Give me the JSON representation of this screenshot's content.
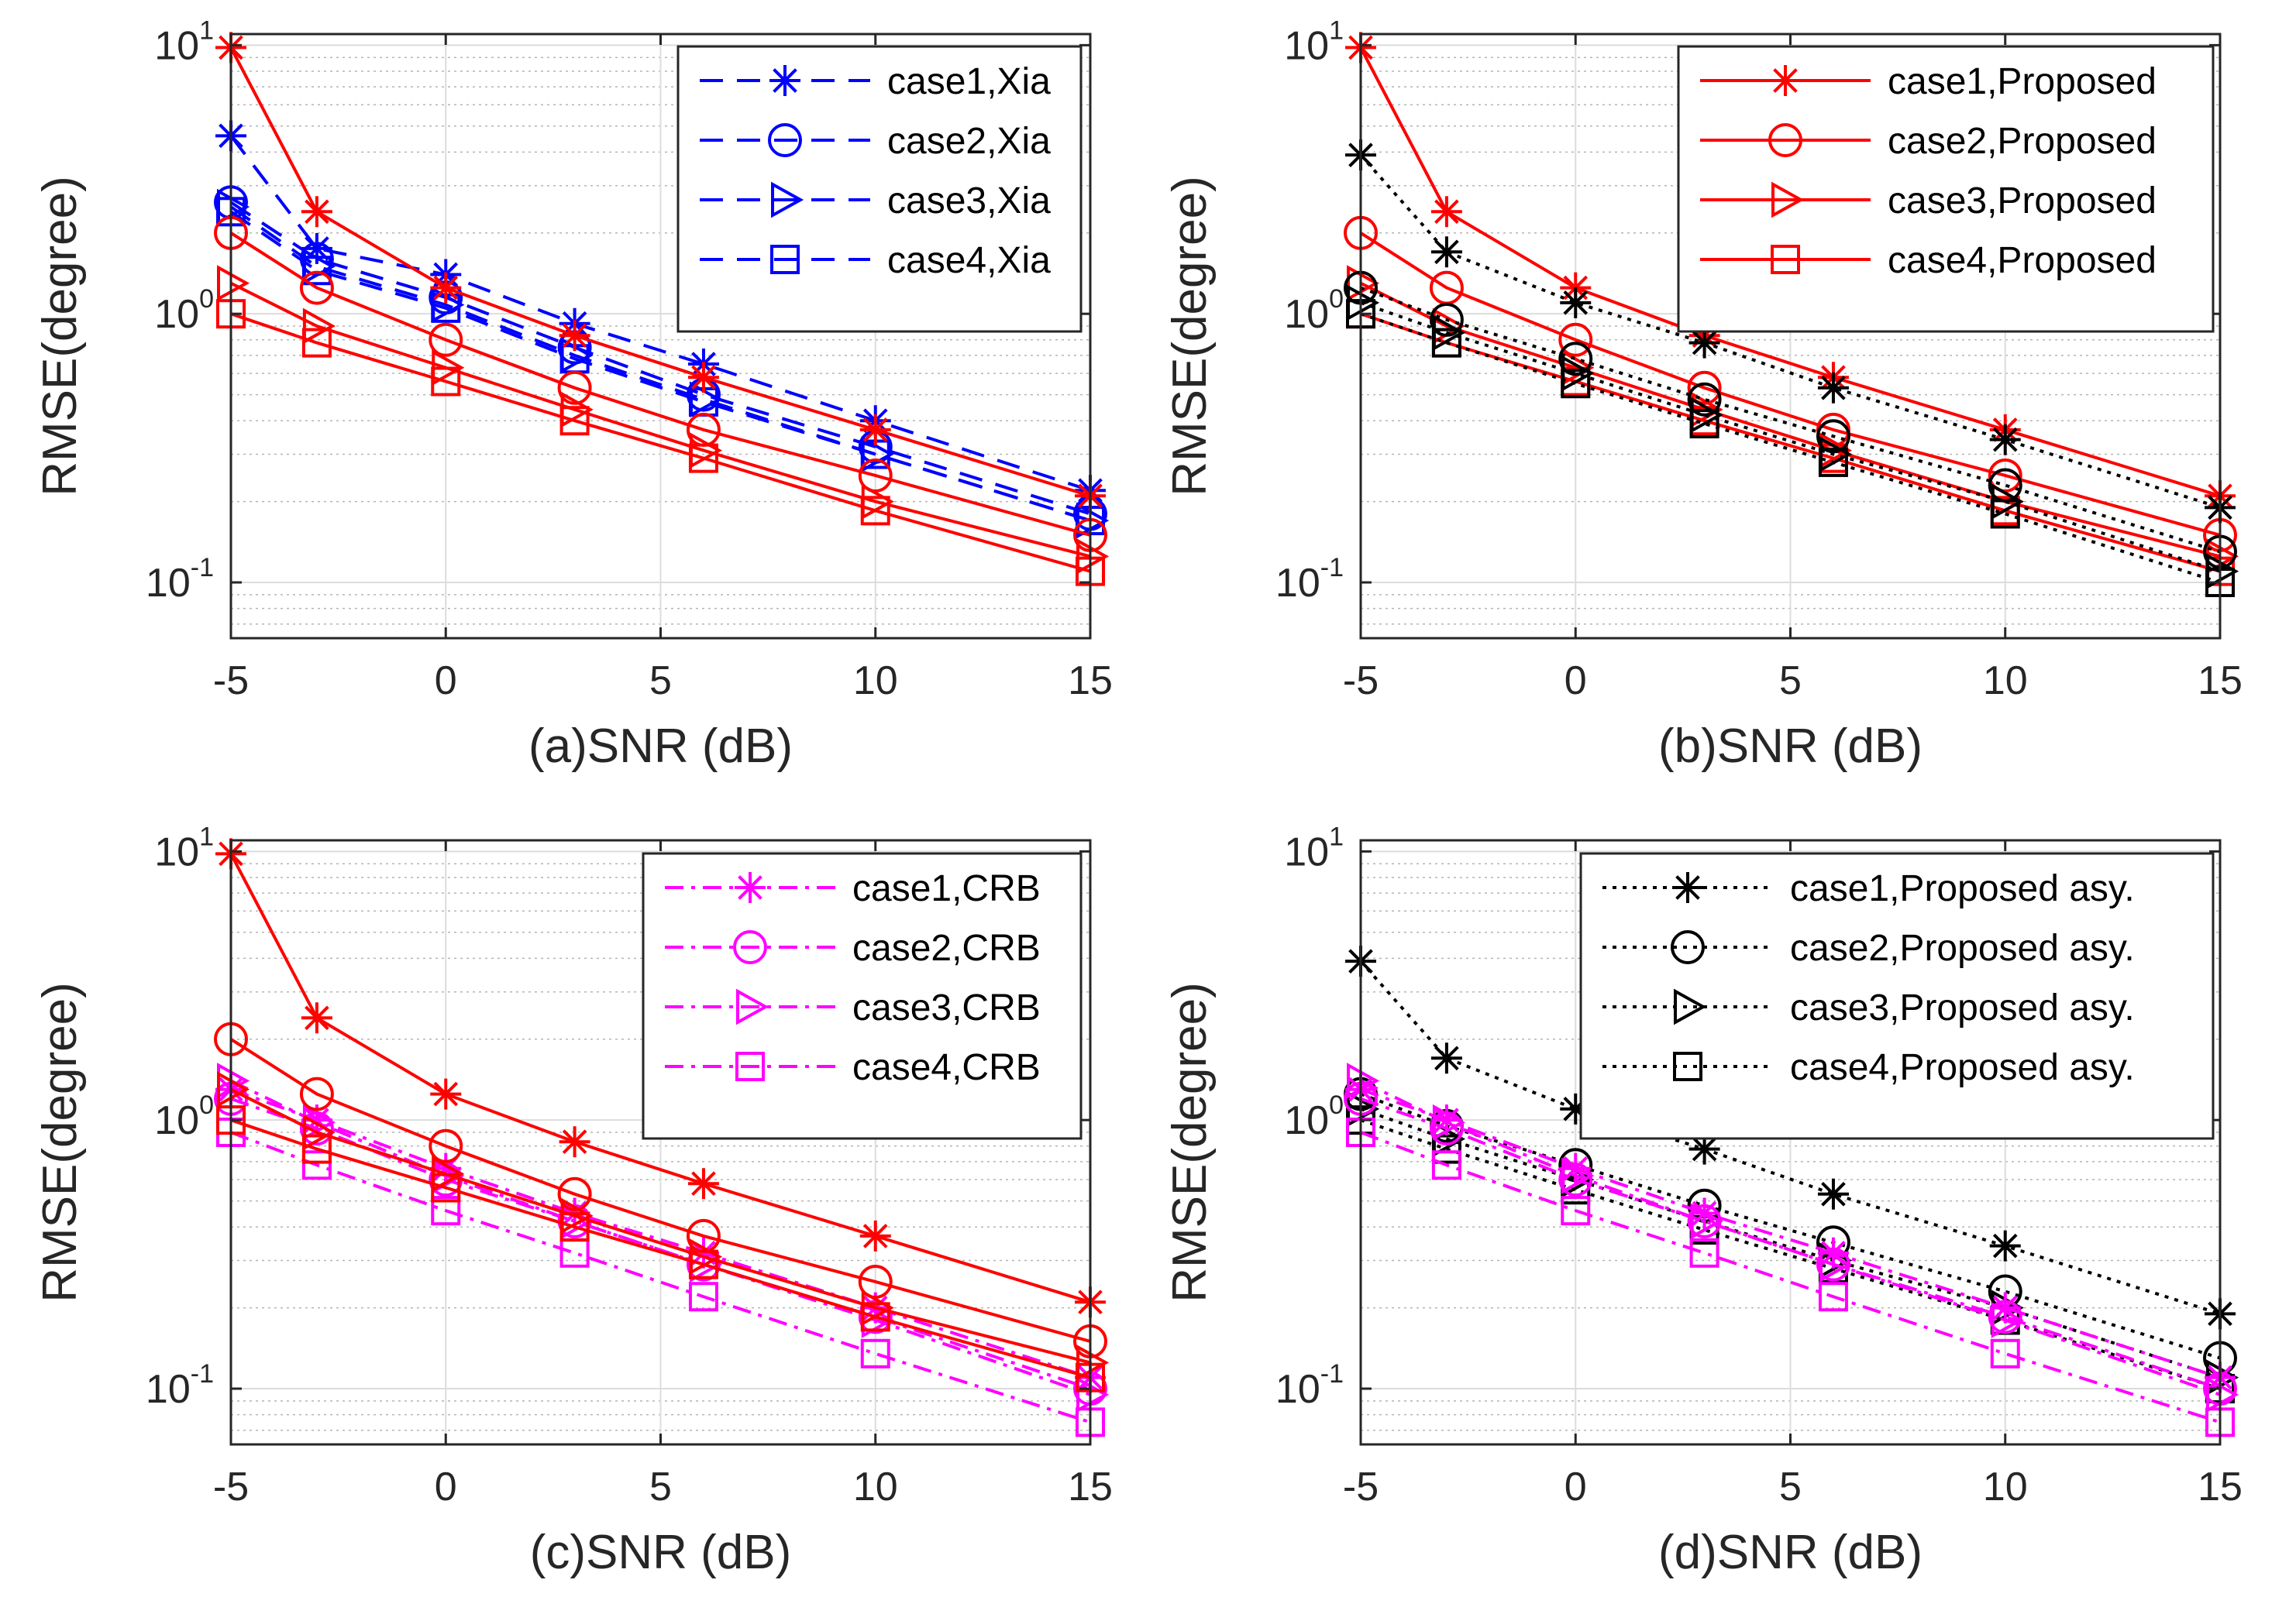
{
  "figure": {
    "ylabel": "RMSE(degree)",
    "ytick_labels": [
      {
        "base": "10",
        "exp": "-1",
        "value": 0.1
      },
      {
        "base": "10",
        "exp": "0",
        "value": 1
      },
      {
        "base": "10",
        "exp": "1",
        "value": 10
      }
    ]
  },
  "chart_data": [
    {
      "type": "line",
      "id": "a",
      "xlabel": "(a)SNR (dB)",
      "ylabel": "RMSE(degree)",
      "yscale": "log",
      "xlim": [
        -5,
        15
      ],
      "ylim": [
        0.062,
        11
      ],
      "x": [
        -5,
        -3,
        0,
        3,
        6,
        10,
        15
      ],
      "xticks": [
        -5,
        0,
        5,
        10,
        15
      ],
      "grid": true,
      "legend_position": "top-right",
      "series": [
        {
          "name": "case1,Xia",
          "color": "#0000ff",
          "dash": "dashed",
          "marker": "star",
          "legend": true,
          "values": [
            4.6,
            1.75,
            1.4,
            0.92,
            0.65,
            0.4,
            0.22
          ]
        },
        {
          "name": "case2,Xia",
          "color": "#0000ff",
          "dash": "dashed",
          "marker": "circle",
          "legend": true,
          "values": [
            2.6,
            1.6,
            1.15,
            0.75,
            0.5,
            0.32,
            0.18
          ]
        },
        {
          "name": "case3,Xia",
          "color": "#0000ff",
          "dash": "dashed",
          "marker": "triangle",
          "legend": true,
          "values": [
            2.5,
            1.5,
            1.08,
            0.7,
            0.48,
            0.3,
            0.17
          ]
        },
        {
          "name": "case4,Xia",
          "color": "#0000ff",
          "dash": "dashed",
          "marker": "square",
          "legend": true,
          "values": [
            2.4,
            1.45,
            1.05,
            0.68,
            0.47,
            0.3,
            0.17
          ]
        },
        {
          "name": "case1,Proposed",
          "color": "#ff0000",
          "dash": "solid",
          "marker": "star",
          "legend": false,
          "values": [
            9.8,
            2.4,
            1.25,
            0.83,
            0.58,
            0.37,
            0.21
          ]
        },
        {
          "name": "case2,Proposed",
          "color": "#ff0000",
          "dash": "solid",
          "marker": "circle",
          "legend": false,
          "values": [
            2.0,
            1.25,
            0.8,
            0.53,
            0.37,
            0.25,
            0.15
          ]
        },
        {
          "name": "case3,Proposed",
          "color": "#ff0000",
          "dash": "solid",
          "marker": "triangle",
          "legend": false,
          "values": [
            1.3,
            0.9,
            0.63,
            0.44,
            0.31,
            0.2,
            0.125
          ]
        },
        {
          "name": "case4,Proposed",
          "color": "#ff0000",
          "dash": "solid",
          "marker": "square",
          "legend": false,
          "values": [
            1.0,
            0.78,
            0.56,
            0.4,
            0.29,
            0.185,
            0.11
          ]
        }
      ]
    },
    {
      "type": "line",
      "id": "b",
      "xlabel": "(b)SNR (dB)",
      "ylabel": "RMSE(degree)",
      "yscale": "log",
      "xlim": [
        -5,
        15
      ],
      "ylim": [
        0.062,
        11
      ],
      "x": [
        -5,
        -3,
        0,
        3,
        6,
        10,
        15
      ],
      "xticks": [
        -5,
        0,
        5,
        10,
        15
      ],
      "grid": true,
      "legend_position": "top-right",
      "series": [
        {
          "name": "case1,Proposed",
          "color": "#ff0000",
          "dash": "solid",
          "marker": "star",
          "legend": true,
          "values": [
            9.8,
            2.4,
            1.25,
            0.83,
            0.58,
            0.37,
            0.21
          ]
        },
        {
          "name": "case2,Proposed",
          "color": "#ff0000",
          "dash": "solid",
          "marker": "circle",
          "legend": true,
          "values": [
            2.0,
            1.25,
            0.8,
            0.53,
            0.37,
            0.25,
            0.15
          ]
        },
        {
          "name": "case3,Proposed",
          "color": "#ff0000",
          "dash": "solid",
          "marker": "triangle",
          "legend": true,
          "values": [
            1.3,
            0.9,
            0.63,
            0.44,
            0.31,
            0.2,
            0.125
          ]
        },
        {
          "name": "case4,Proposed",
          "color": "#ff0000",
          "dash": "solid",
          "marker": "square",
          "legend": true,
          "values": [
            1.0,
            0.78,
            0.56,
            0.4,
            0.29,
            0.185,
            0.11
          ]
        },
        {
          "name": "case1,Proposed asy.",
          "color": "#000000",
          "dash": "dotted",
          "marker": "star",
          "legend": false,
          "values": [
            3.9,
            1.7,
            1.1,
            0.78,
            0.53,
            0.34,
            0.19
          ]
        },
        {
          "name": "case2,Proposed asy.",
          "color": "#000000",
          "dash": "dotted",
          "marker": "circle",
          "legend": false,
          "values": [
            1.25,
            0.95,
            0.68,
            0.48,
            0.35,
            0.23,
            0.13
          ]
        },
        {
          "name": "case3,Proposed asy.",
          "color": "#000000",
          "dash": "dotted",
          "marker": "triangle",
          "legend": false,
          "values": [
            1.1,
            0.85,
            0.6,
            0.42,
            0.3,
            0.2,
            0.11
          ]
        },
        {
          "name": "case4,Proposed asy.",
          "color": "#000000",
          "dash": "dotted",
          "marker": "square",
          "legend": false,
          "values": [
            1.0,
            0.78,
            0.55,
            0.39,
            0.28,
            0.18,
            0.1
          ]
        }
      ]
    },
    {
      "type": "line",
      "id": "c",
      "xlabel": "(c)SNR (dB)",
      "ylabel": "RMSE(degree)",
      "yscale": "log",
      "xlim": [
        -5,
        15
      ],
      "ylim": [
        0.062,
        11
      ],
      "x": [
        -5,
        -3,
        0,
        3,
        6,
        10,
        15
      ],
      "xticks": [
        -5,
        0,
        5,
        10,
        15
      ],
      "grid": true,
      "legend_position": "top-right",
      "series": [
        {
          "name": "case1,CRB",
          "color": "#ff00ff",
          "dash": "dashdot",
          "marker": "star",
          "legend": true,
          "values": [
            1.3,
            1.0,
            0.66,
            0.45,
            0.32,
            0.2,
            0.11
          ]
        },
        {
          "name": "case2,CRB",
          "color": "#ff00ff",
          "dash": "dashdot",
          "marker": "circle",
          "legend": true,
          "values": [
            1.2,
            0.93,
            0.6,
            0.42,
            0.29,
            0.185,
            0.1
          ]
        },
        {
          "name": "case3,CRB",
          "color": "#ff00ff",
          "dash": "dashdot",
          "marker": "triangle",
          "legend": true,
          "values": [
            1.4,
            0.98,
            0.62,
            0.42,
            0.29,
            0.18,
            0.095
          ]
        },
        {
          "name": "case4,CRB",
          "color": "#ff00ff",
          "dash": "dashdot",
          "marker": "square",
          "legend": true,
          "values": [
            0.9,
            0.68,
            0.46,
            0.32,
            0.22,
            0.135,
            0.075
          ]
        },
        {
          "name": "case1,Proposed",
          "color": "#ff0000",
          "dash": "solid",
          "marker": "star",
          "legend": false,
          "values": [
            9.8,
            2.4,
            1.25,
            0.83,
            0.58,
            0.37,
            0.21
          ]
        },
        {
          "name": "case2,Proposed",
          "color": "#ff0000",
          "dash": "solid",
          "marker": "circle",
          "legend": false,
          "values": [
            2.0,
            1.25,
            0.8,
            0.53,
            0.37,
            0.25,
            0.15
          ]
        },
        {
          "name": "case3,Proposed",
          "color": "#ff0000",
          "dash": "solid",
          "marker": "triangle",
          "legend": false,
          "values": [
            1.3,
            0.9,
            0.63,
            0.44,
            0.31,
            0.2,
            0.125
          ]
        },
        {
          "name": "case4,Proposed",
          "color": "#ff0000",
          "dash": "solid",
          "marker": "square",
          "legend": false,
          "values": [
            1.0,
            0.78,
            0.56,
            0.4,
            0.29,
            0.185,
            0.11
          ]
        }
      ]
    },
    {
      "type": "line",
      "id": "d",
      "xlabel": "(d)SNR (dB)",
      "ylabel": "RMSE(degree)",
      "yscale": "log",
      "xlim": [
        -5,
        15
      ],
      "ylim": [
        0.062,
        11
      ],
      "x": [
        -5,
        -3,
        0,
        3,
        6,
        10,
        15
      ],
      "xticks": [
        -5,
        0,
        5,
        10,
        15
      ],
      "grid": true,
      "legend_position": "top-right",
      "series": [
        {
          "name": "case1,Proposed asy.",
          "color": "#000000",
          "dash": "dotted",
          "marker": "star",
          "legend": true,
          "values": [
            3.9,
            1.7,
            1.1,
            0.78,
            0.53,
            0.34,
            0.19
          ]
        },
        {
          "name": "case2,Proposed asy.",
          "color": "#000000",
          "dash": "dotted",
          "marker": "circle",
          "legend": true,
          "values": [
            1.25,
            0.95,
            0.68,
            0.48,
            0.35,
            0.23,
            0.13
          ]
        },
        {
          "name": "case3,Proposed asy.",
          "color": "#000000",
          "dash": "dotted",
          "marker": "triangle",
          "legend": true,
          "values": [
            1.1,
            0.85,
            0.6,
            0.42,
            0.3,
            0.2,
            0.11
          ]
        },
        {
          "name": "case4,Proposed asy.",
          "color": "#000000",
          "dash": "dotted",
          "marker": "square",
          "legend": true,
          "values": [
            1.0,
            0.78,
            0.55,
            0.39,
            0.28,
            0.18,
            0.1
          ]
        },
        {
          "name": "case1,CRB",
          "color": "#ff00ff",
          "dash": "dashdot",
          "marker": "star",
          "legend": false,
          "values": [
            1.3,
            1.0,
            0.66,
            0.45,
            0.32,
            0.2,
            0.11
          ]
        },
        {
          "name": "case2,CRB",
          "color": "#ff00ff",
          "dash": "dashdot",
          "marker": "circle",
          "legend": false,
          "values": [
            1.2,
            0.93,
            0.6,
            0.42,
            0.29,
            0.185,
            0.1
          ]
        },
        {
          "name": "case3,CRB",
          "color": "#ff00ff",
          "dash": "dashdot",
          "marker": "triangle",
          "legend": false,
          "values": [
            1.4,
            0.98,
            0.62,
            0.42,
            0.29,
            0.18,
            0.095
          ]
        },
        {
          "name": "case4,CRB",
          "color": "#ff00ff",
          "dash": "dashdot",
          "marker": "square",
          "legend": false,
          "values": [
            0.9,
            0.68,
            0.46,
            0.32,
            0.22,
            0.135,
            0.075
          ]
        }
      ]
    }
  ]
}
